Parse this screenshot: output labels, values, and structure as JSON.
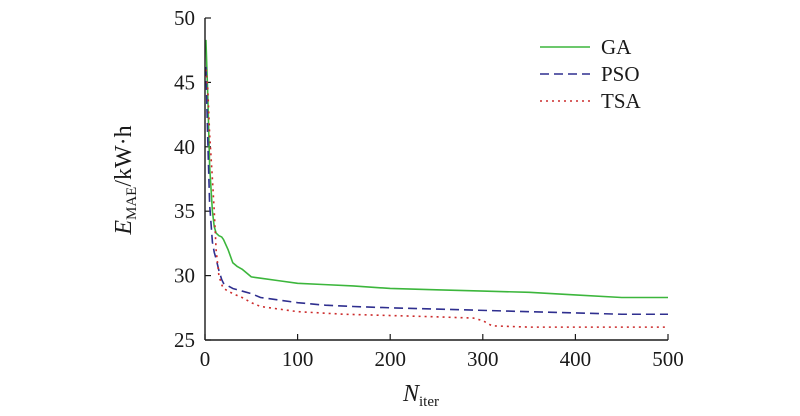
{
  "chart_data": {
    "type": "line",
    "xlabel": {
      "main": "N",
      "sub": "iter"
    },
    "ylabel": {
      "main": "E",
      "sub": "MAE",
      "unit": "/kW·h"
    },
    "xlim": [
      0,
      500
    ],
    "ylim": [
      25,
      50
    ],
    "xticks": [
      0,
      100,
      200,
      300,
      400,
      500
    ],
    "yticks": [
      25,
      30,
      35,
      40,
      45,
      50
    ],
    "grid": false,
    "legend_position": "top-right",
    "series": [
      {
        "name": "GA",
        "color": "#3cb63c",
        "style": "solid",
        "x": [
          1,
          3,
          5,
          8,
          10,
          12,
          15,
          18,
          20,
          25,
          30,
          35,
          40,
          50,
          60,
          80,
          100,
          130,
          160,
          200,
          250,
          300,
          350,
          400,
          450,
          500
        ],
        "y": [
          48.3,
          44.0,
          38.5,
          35.0,
          33.8,
          33.3,
          33.1,
          33.0,
          32.8,
          32.0,
          31.0,
          30.7,
          30.5,
          29.9,
          29.8,
          29.6,
          29.4,
          29.3,
          29.2,
          29.0,
          28.9,
          28.8,
          28.7,
          28.5,
          28.3,
          28.3
        ]
      },
      {
        "name": "PSO",
        "color": "#2f2f8f",
        "style": "dashed",
        "x": [
          1,
          3,
          5,
          8,
          10,
          12,
          15,
          18,
          20,
          25,
          30,
          40,
          50,
          60,
          80,
          100,
          130,
          160,
          200,
          250,
          300,
          350,
          400,
          450,
          500
        ],
        "y": [
          46.2,
          40.5,
          35.5,
          32.6,
          31.8,
          31.3,
          30.4,
          29.7,
          29.4,
          29.2,
          29.0,
          28.8,
          28.6,
          28.3,
          28.1,
          27.9,
          27.7,
          27.6,
          27.5,
          27.4,
          27.3,
          27.2,
          27.1,
          27.0,
          27.0
        ]
      },
      {
        "name": "TSA",
        "color": "#cc2b2b",
        "style": "dotted",
        "x": [
          1,
          3,
          5,
          8,
          10,
          12,
          15,
          18,
          20,
          25,
          30,
          40,
          50,
          60,
          80,
          100,
          150,
          200,
          250,
          290,
          300,
          310,
          350,
          400,
          450,
          500
        ],
        "y": [
          46.0,
          44.5,
          41.0,
          37.5,
          35.0,
          32.0,
          30.0,
          29.3,
          29.0,
          28.8,
          28.6,
          28.3,
          27.9,
          27.6,
          27.4,
          27.2,
          27.0,
          26.9,
          26.8,
          26.7,
          26.5,
          26.1,
          26.0,
          26.0,
          26.0,
          26.0
        ]
      }
    ]
  }
}
